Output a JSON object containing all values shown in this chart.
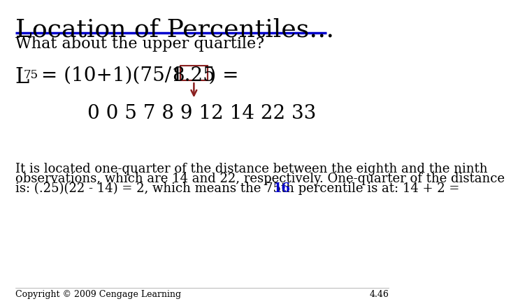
{
  "title": "Location of Percentiles…",
  "title_fontsize": 26,
  "underline_color": "#0000CC",
  "bg_color": "#FFFFFF",
  "subtitle": "What about the upper quartile?",
  "subtitle_fontsize": 16,
  "formula_fontsize": 20,
  "formula_sub_fontsize": 12,
  "formula_boxed": "8.25",
  "box_color": "#8B2020",
  "arrow_color": "#8B2020",
  "data_row": "0 0 5 7 8 9 12 14 22 33",
  "data_fontsize": 20,
  "para_line1": "It is located one-quarter of the distance between the eighth and the ninth",
  "para_line2": "observations, which are 14 and 22, respectively. One-quarter of the distance",
  "para_line3_pre": "is: (.25)(22 - 14) = 2, which means the 75th percentile is at: 14 + 2 = ",
  "para_bold": "16",
  "para_bold_color": "#0000CC",
  "paragraph_fontsize": 13,
  "copyright": "Copyright © 2009 Cengage Learning",
  "page_num": "4.46",
  "footer_fontsize": 9,
  "font": "DejaVu Serif"
}
